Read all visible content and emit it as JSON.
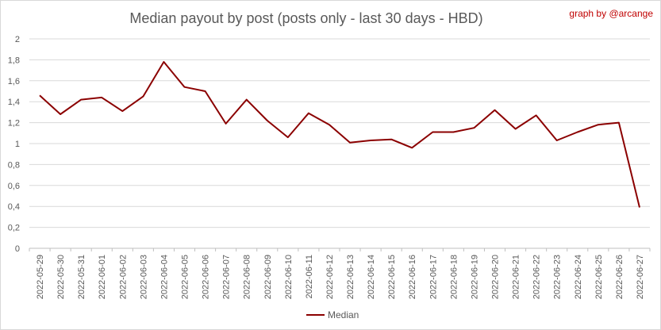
{
  "chart_data": {
    "type": "line",
    "title": "Median payout by post (posts only - last 30 days - HBD)",
    "credit": "graph by @arcange",
    "xlabel": "",
    "ylabel": "",
    "ylim": [
      0,
      2
    ],
    "yticks": [
      "0",
      "0,2",
      "0,4",
      "0,6",
      "0,8",
      "1",
      "1,2",
      "1,4",
      "1,6",
      "1,8",
      "2"
    ],
    "grid": true,
    "legend_position": "bottom",
    "line_color": "#8b0000",
    "categories": [
      "2022-05-29",
      "2022-05-30",
      "2022-05-31",
      "2022-06-01",
      "2022-06-02",
      "2022-06-03",
      "2022-06-04",
      "2022-06-05",
      "2022-06-06",
      "2022-06-07",
      "2022-06-08",
      "2022-06-09",
      "2022-06-10",
      "2022-06-11",
      "2022-06-12",
      "2022-06-13",
      "2022-06-14",
      "2022-06-15",
      "2022-06-16",
      "2022-06-17",
      "2022-06-18",
      "2022-06-19",
      "2022-06-20",
      "2022-06-21",
      "2022-06-22",
      "2022-06-23",
      "2022-06-24",
      "2022-06-25",
      "2022-06-26",
      "2022-06-27"
    ],
    "series": [
      {
        "name": "Median",
        "values": [
          1.46,
          1.28,
          1.42,
          1.44,
          1.31,
          1.45,
          1.78,
          1.54,
          1.5,
          1.19,
          1.42,
          1.22,
          1.06,
          1.29,
          1.18,
          1.01,
          1.03,
          1.04,
          0.96,
          1.11,
          1.11,
          1.15,
          1.32,
          1.14,
          1.27,
          1.03,
          1.11,
          1.18,
          1.2,
          0.39
        ]
      }
    ]
  }
}
